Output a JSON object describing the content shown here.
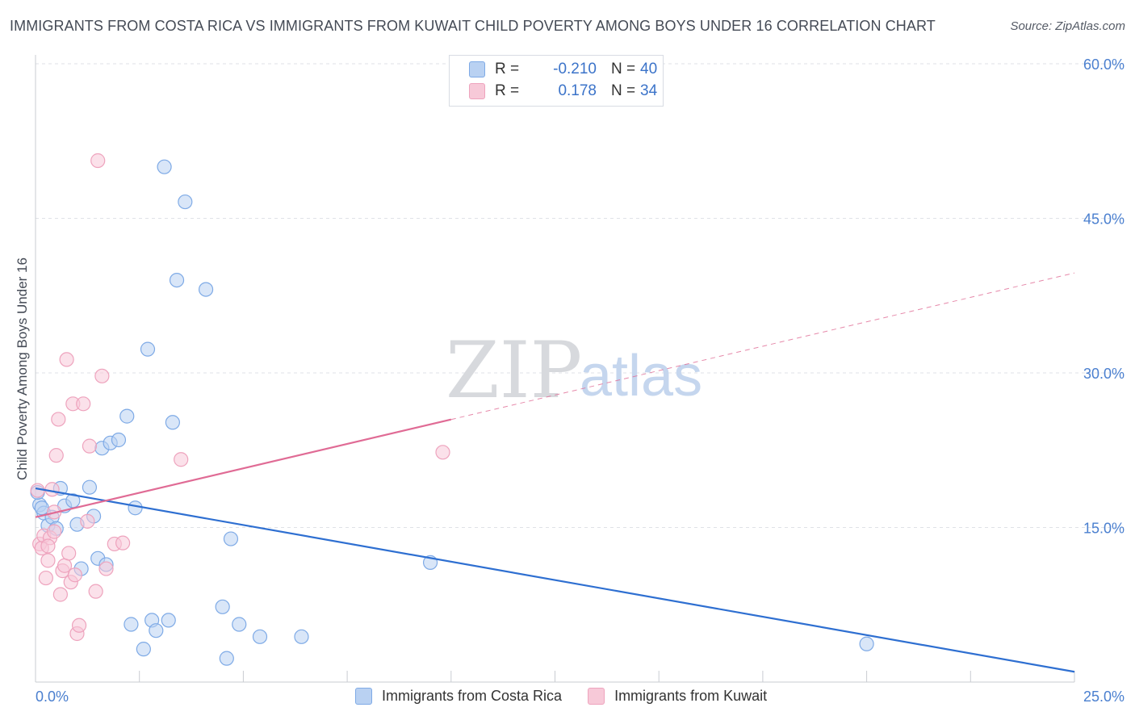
{
  "chart_data": {
    "type": "scatter",
    "title": "IMMIGRANTS FROM COSTA RICA VS IMMIGRANTS FROM KUWAIT CHILD POVERTY AMONG BOYS UNDER 16 CORRELATION CHART",
    "source": "Source: ZipAtlas.com",
    "xlabel": "",
    "ylabel": "Child Poverty Among Boys Under 16",
    "xlim": [
      0,
      25
    ],
    "ylim": [
      0,
      60
    ],
    "x_tick_labels": [
      "0.0%",
      "25.0%"
    ],
    "y_ticks": [
      15,
      30,
      45,
      60
    ],
    "y_tick_labels": [
      "15.0%",
      "30.0%",
      "45.0%",
      "60.0%"
    ],
    "grid": true,
    "legend": {
      "placement": "top-center",
      "rows": [
        {
          "r_label": "R =",
          "r_value": "-0.210",
          "n_label": "N =",
          "n_value": "40"
        },
        {
          "r_label": "R =",
          "r_value": "0.178",
          "n_label": "N =",
          "n_value": "34"
        }
      ]
    },
    "watermark": {
      "zip": "ZIP",
      "atlas": "atlas"
    },
    "series": [
      {
        "name": "Immigrants from Costa Rica",
        "color": "#7eaae6",
        "fill": "#b9d1f2",
        "line_color": "#2e6fd1",
        "trend": {
          "x0": 0,
          "y0": 18.8,
          "x1": 25,
          "y1": 1.0,
          "dashed_from": null
        },
        "points": [
          [
            0.1,
            17.2
          ],
          [
            0.2,
            16.4
          ],
          [
            0.3,
            15.2
          ],
          [
            0.4,
            16.0
          ],
          [
            0.5,
            14.9
          ],
          [
            0.6,
            18.8
          ],
          [
            0.7,
            17.1
          ],
          [
            0.9,
            17.6
          ],
          [
            1.0,
            15.3
          ],
          [
            1.1,
            11.0
          ],
          [
            1.3,
            18.9
          ],
          [
            1.4,
            16.1
          ],
          [
            1.5,
            12.0
          ],
          [
            1.6,
            22.7
          ],
          [
            1.7,
            11.4
          ],
          [
            1.8,
            23.2
          ],
          [
            2.0,
            23.5
          ],
          [
            2.2,
            25.8
          ],
          [
            2.3,
            5.6
          ],
          [
            2.4,
            16.9
          ],
          [
            2.6,
            3.2
          ],
          [
            2.7,
            32.3
          ],
          [
            2.8,
            6.0
          ],
          [
            2.9,
            5.0
          ],
          [
            3.1,
            50.0
          ],
          [
            3.2,
            6.0
          ],
          [
            3.3,
            25.2
          ],
          [
            3.4,
            39.0
          ],
          [
            3.6,
            46.6
          ],
          [
            4.1,
            38.1
          ],
          [
            4.5,
            7.3
          ],
          [
            4.6,
            2.3
          ],
          [
            4.7,
            13.9
          ],
          [
            4.9,
            5.6
          ],
          [
            5.4,
            4.4
          ],
          [
            6.4,
            4.4
          ],
          [
            9.5,
            11.6
          ],
          [
            20.0,
            3.7
          ],
          [
            0.05,
            18.4
          ],
          [
            0.15,
            16.9
          ]
        ]
      },
      {
        "name": "Immigrants from Kuwait",
        "color": "#eea3bd",
        "fill": "#f7c9d8",
        "line_color": "#e06b95",
        "trend": {
          "x0": 0,
          "y0": 16.0,
          "x1": 25,
          "y1": 39.7,
          "solid_to_x": 10.0
        },
        "points": [
          [
            0.05,
            18.6
          ],
          [
            0.1,
            13.4
          ],
          [
            0.15,
            13.0
          ],
          [
            0.2,
            14.2
          ],
          [
            0.25,
            10.1
          ],
          [
            0.3,
            11.8
          ],
          [
            0.35,
            14.0
          ],
          [
            0.4,
            18.7
          ],
          [
            0.45,
            14.6
          ],
          [
            0.5,
            22.0
          ],
          [
            0.55,
            25.5
          ],
          [
            0.6,
            8.5
          ],
          [
            0.65,
            10.8
          ],
          [
            0.7,
            11.3
          ],
          [
            0.75,
            31.3
          ],
          [
            0.8,
            12.5
          ],
          [
            0.85,
            9.7
          ],
          [
            0.9,
            27.0
          ],
          [
            0.95,
            10.4
          ],
          [
            1.0,
            4.7
          ],
          [
            1.05,
            5.5
          ],
          [
            1.15,
            27.0
          ],
          [
            1.25,
            15.6
          ],
          [
            1.3,
            22.9
          ],
          [
            1.45,
            8.8
          ],
          [
            1.5,
            50.6
          ],
          [
            1.6,
            29.7
          ],
          [
            1.7,
            11.0
          ],
          [
            1.9,
            13.4
          ],
          [
            2.1,
            13.5
          ],
          [
            3.5,
            21.6
          ],
          [
            9.8,
            22.3
          ],
          [
            0.3,
            13.2
          ],
          [
            0.45,
            16.5
          ]
        ]
      }
    ]
  }
}
